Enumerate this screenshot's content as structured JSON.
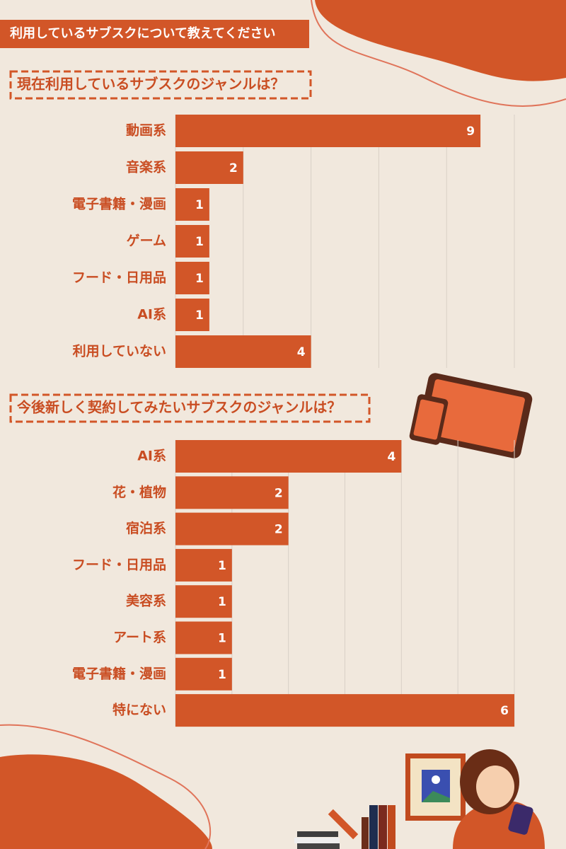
{
  "header": {
    "title": "利用しているサブスクについて教えてください"
  },
  "chart_data": [
    {
      "type": "bar",
      "orientation": "horizontal",
      "title": "現在利用しているサブスクのジャンルは？",
      "categories": [
        "動画系",
        "音楽系",
        "電子書籍・漫画",
        "ゲーム",
        "フード・日用品",
        "AI系",
        "利用していない"
      ],
      "values": [
        9,
        2,
        1,
        1,
        1,
        1,
        4
      ],
      "color": "#d25628",
      "xlim": [
        0,
        10
      ],
      "xticks": [
        0,
        2,
        4,
        6,
        8,
        10
      ],
      "grid": true
    },
    {
      "type": "bar",
      "orientation": "horizontal",
      "title": "今後新しく契約してみたいサブスクのジャンルは？",
      "categories": [
        "AI系",
        "花・植物",
        "宿泊系",
        "フード・日用品",
        "美容系",
        "アート系",
        "電子書籍・漫画",
        "特にない"
      ],
      "values": [
        4,
        2,
        2,
        1,
        1,
        1,
        1,
        6
      ],
      "color": "#d25628",
      "xlim": [
        0,
        6
      ],
      "xticks": [
        0,
        1,
        2,
        3,
        4,
        5,
        6
      ],
      "grid": true
    }
  ]
}
